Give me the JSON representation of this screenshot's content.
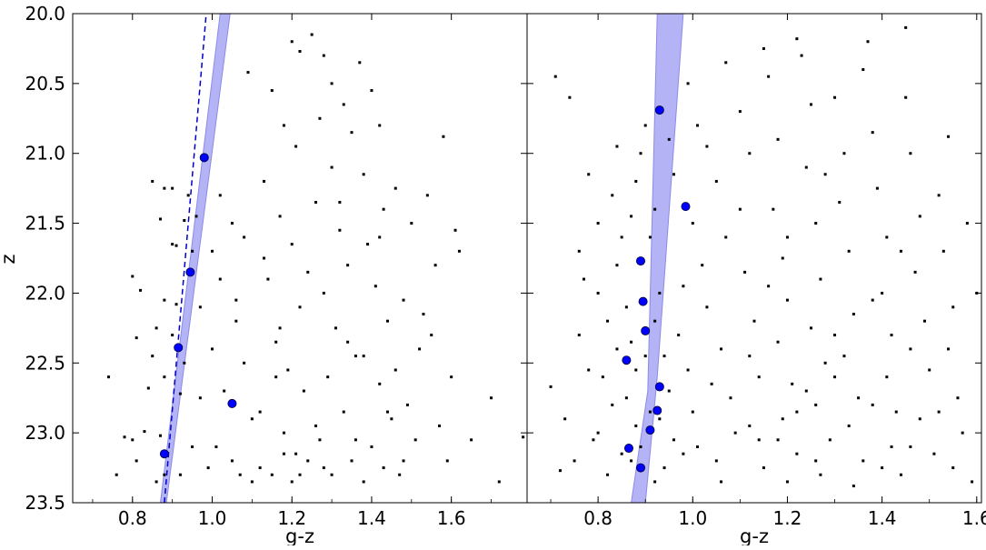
{
  "chart_data": [
    {
      "type": "scatter",
      "panel": "left",
      "xlabel": "g-z",
      "ylabel": "z",
      "xlim": [
        0.65,
        1.79
      ],
      "ylim": [
        23.5,
        20.0
      ],
      "y_inverted": true,
      "x_ticks": [
        "0.8",
        "1.0",
        "1.2",
        "1.4",
        "1.6"
      ],
      "y_ticks": [
        "20.0",
        "20.5",
        "21.0",
        "21.5",
        "22.0",
        "22.5",
        "23.0",
        "23.5"
      ],
      "grid": false,
      "band": {
        "color": "#b3b3f5",
        "left_edge": [
          [
            0.87,
            23.5
          ],
          [
            1.02,
            20.0
          ]
        ],
        "right_edge": [
          [
            0.885,
            23.5
          ],
          [
            1.045,
            20.0
          ]
        ]
      },
      "dashed_line": {
        "color": "#0000cc",
        "points": [
          [
            0.88,
            23.5
          ],
          [
            0.985,
            20.0
          ]
        ]
      },
      "highlighted_points": {
        "color": "#0000ff",
        "points": [
          [
            0.98,
            21.03
          ],
          [
            0.945,
            21.85
          ],
          [
            0.915,
            22.39
          ],
          [
            1.05,
            22.79
          ],
          [
            0.88,
            23.15
          ]
        ]
      },
      "scatter_points": [
        [
          0.85,
          21.2
        ],
        [
          0.88,
          21.25
        ],
        [
          0.9,
          21.25
        ],
        [
          0.94,
          21.3
        ],
        [
          0.87,
          21.47
        ],
        [
          0.93,
          21.48
        ],
        [
          0.96,
          21.45
        ],
        [
          0.9,
          21.65
        ],
        [
          0.91,
          21.66
        ],
        [
          0.95,
          21.7
        ],
        [
          0.8,
          21.88
        ],
        [
          0.82,
          21.98
        ],
        [
          0.88,
          22.05
        ],
        [
          0.91,
          22.08
        ],
        [
          0.97,
          22.1
        ],
        [
          0.86,
          22.25
        ],
        [
          0.9,
          22.3
        ],
        [
          0.81,
          22.32
        ],
        [
          0.85,
          22.45
        ],
        [
          0.93,
          22.5
        ],
        [
          0.88,
          22.6
        ],
        [
          0.74,
          22.6
        ],
        [
          0.84,
          22.68
        ],
        [
          0.92,
          22.72
        ],
        [
          0.97,
          22.75
        ],
        [
          0.83,
          22.99
        ],
        [
          0.87,
          23.02
        ],
        [
          0.78,
          23.03
        ],
        [
          0.8,
          23.05
        ],
        [
          0.95,
          23.1
        ],
        [
          0.81,
          23.2
        ],
        [
          0.76,
          23.3
        ],
        [
          0.86,
          23.35
        ],
        [
          0.92,
          23.3
        ],
        [
          0.99,
          23.25
        ],
        [
          0.88,
          23.3
        ],
        [
          1.02,
          21.3
        ],
        [
          1.05,
          21.5
        ],
        [
          1.0,
          21.7
        ],
        [
          1.08,
          21.6
        ],
        [
          1.02,
          21.9
        ],
        [
          1.06,
          22.2
        ],
        [
          1.0,
          22.4
        ],
        [
          1.08,
          22.5
        ],
        [
          1.03,
          22.7
        ],
        [
          1.1,
          22.9
        ],
        [
          1.01,
          23.1
        ],
        [
          1.05,
          23.2
        ],
        [
          1.07,
          23.3
        ],
        [
          1.12,
          23.25
        ],
        [
          1.09,
          20.42
        ],
        [
          1.15,
          20.55
        ],
        [
          1.18,
          20.8
        ],
        [
          1.21,
          20.95
        ],
        [
          1.13,
          21.2
        ],
        [
          1.17,
          21.45
        ],
        [
          1.2,
          21.65
        ],
        [
          1.14,
          21.9
        ],
        [
          1.22,
          22.1
        ],
        [
          1.16,
          22.35
        ],
        [
          1.19,
          22.55
        ],
        [
          1.23,
          22.7
        ],
        [
          1.12,
          22.85
        ],
        [
          1.18,
          23.0
        ],
        [
          1.21,
          23.15
        ],
        [
          1.15,
          23.3
        ],
        [
          1.2,
          23.35
        ],
        [
          1.24,
          23.2
        ],
        [
          1.17,
          22.25
        ],
        [
          1.13,
          21.75
        ],
        [
          1.2,
          20.2
        ],
        [
          1.22,
          20.27
        ],
        [
          1.25,
          20.15
        ],
        [
          1.28,
          20.3
        ],
        [
          1.3,
          20.5
        ],
        [
          1.27,
          20.75
        ],
        [
          1.33,
          20.65
        ],
        [
          1.35,
          20.85
        ],
        [
          1.3,
          21.1
        ],
        [
          1.26,
          21.35
        ],
        [
          1.32,
          21.55
        ],
        [
          1.34,
          21.8
        ],
        [
          1.28,
          22.0
        ],
        [
          1.31,
          22.25
        ],
        [
          1.36,
          22.45
        ],
        [
          1.29,
          22.6
        ],
        [
          1.33,
          22.85
        ],
        [
          1.27,
          23.05
        ],
        [
          1.35,
          23.2
        ],
        [
          1.3,
          23.3
        ],
        [
          1.37,
          20.35
        ],
        [
          1.4,
          20.55
        ],
        [
          1.42,
          20.8
        ],
        [
          1.38,
          21.15
        ],
        [
          1.43,
          21.4
        ],
        [
          1.39,
          21.65
        ],
        [
          1.41,
          21.95
        ],
        [
          1.44,
          22.2
        ],
        [
          1.38,
          22.45
        ],
        [
          1.42,
          22.65
        ],
        [
          1.45,
          22.9
        ],
        [
          1.4,
          23.1
        ],
        [
          1.43,
          23.25
        ],
        [
          1.47,
          23.3
        ],
        [
          1.46,
          21.25
        ],
        [
          1.48,
          22.05
        ],
        [
          1.5,
          21.5
        ],
        [
          1.52,
          22.4
        ],
        [
          1.49,
          22.8
        ],
        [
          1.51,
          23.05
        ],
        [
          1.54,
          21.3
        ],
        [
          1.56,
          21.8
        ],
        [
          1.58,
          20.88
        ],
        [
          1.55,
          22.3
        ],
        [
          1.6,
          22.6
        ],
        [
          1.57,
          22.95
        ],
        [
          1.59,
          23.2
        ],
        [
          1.62,
          21.7
        ],
        [
          1.65,
          23.05
        ],
        [
          1.7,
          22.75
        ],
        [
          1.78,
          23.03
        ],
        [
          1.72,
          23.35
        ],
        [
          1.61,
          21.55
        ],
        [
          1.53,
          22.15
        ],
        [
          1.46,
          22.55
        ],
        [
          1.36,
          23.05
        ],
        [
          1.26,
          22.95
        ],
        [
          1.16,
          22.6
        ],
        [
          1.06,
          22.05
        ],
        [
          1.24,
          21.85
        ],
        [
          1.32,
          21.35
        ],
        [
          1.42,
          21.6
        ],
        [
          1.34,
          22.35
        ],
        [
          1.44,
          22.85
        ],
        [
          1.22,
          23.3
        ],
        [
          1.38,
          23.35
        ],
        [
          1.28,
          23.25
        ],
        [
          1.18,
          23.15
        ],
        [
          1.1,
          23.35
        ],
        [
          1.48,
          23.2
        ]
      ]
    },
    {
      "type": "scatter",
      "panel": "right",
      "xlabel": "g-z",
      "ylabel": "",
      "xlim": [
        0.65,
        1.61
      ],
      "ylim": [
        23.5,
        20.0
      ],
      "y_inverted": true,
      "x_ticks": [
        "0.8",
        "1.0",
        "1.2",
        "1.4",
        "1.6"
      ],
      "y_ticks": [],
      "grid": false,
      "band": {
        "color": "#b3b3f5",
        "left_edge": [
          [
            0.87,
            23.5
          ],
          [
            0.905,
            22.7
          ],
          [
            0.925,
            20.0
          ]
        ],
        "right_edge": [
          [
            0.9,
            23.5
          ],
          [
            0.925,
            22.6
          ],
          [
            0.98,
            20.0
          ]
        ]
      },
      "highlighted_points": {
        "color": "#0000ff",
        "points": [
          [
            0.93,
            20.69
          ],
          [
            0.985,
            21.38
          ],
          [
            0.89,
            21.77
          ],
          [
            0.895,
            22.06
          ],
          [
            0.9,
            22.27
          ],
          [
            0.86,
            22.48
          ],
          [
            0.93,
            22.67
          ],
          [
            0.925,
            22.84
          ],
          [
            0.91,
            22.98
          ],
          [
            0.865,
            23.11
          ],
          [
            0.89,
            23.25
          ]
        ]
      },
      "scatter_points": [
        [
          0.71,
          20.45
        ],
        [
          0.74,
          20.6
        ],
        [
          0.7,
          22.67
        ],
        [
          0.73,
          22.9
        ],
        [
          0.76,
          22.3
        ],
        [
          0.78,
          22.55
        ],
        [
          0.75,
          23.2
        ],
        [
          0.79,
          23.05
        ],
        [
          0.72,
          23.27
        ],
        [
          0.77,
          21.9
        ],
        [
          0.8,
          22.0
        ],
        [
          0.82,
          22.2
        ],
        [
          0.84,
          22.4
        ],
        [
          0.81,
          22.6
        ],
        [
          0.83,
          22.8
        ],
        [
          0.8,
          23.0
        ],
        [
          0.85,
          23.15
        ],
        [
          0.82,
          23.3
        ],
        [
          0.84,
          21.8
        ],
        [
          0.86,
          22.1
        ],
        [
          0.87,
          22.35
        ],
        [
          0.88,
          22.55
        ],
        [
          0.86,
          22.75
        ],
        [
          0.88,
          22.95
        ],
        [
          0.87,
          23.2
        ],
        [
          0.85,
          21.6
        ],
        [
          0.83,
          21.3
        ],
        [
          0.88,
          21.2
        ],
        [
          0.87,
          21.45
        ],
        [
          0.89,
          21.0
        ],
        [
          0.91,
          21.6
        ],
        [
          0.93,
          22.0
        ],
        [
          0.92,
          22.2
        ],
        [
          0.94,
          22.45
        ],
        [
          0.95,
          22.7
        ],
        [
          0.93,
          22.9
        ],
        [
          0.96,
          23.05
        ],
        [
          0.94,
          23.25
        ],
        [
          0.97,
          22.3
        ],
        [
          0.98,
          21.95
        ],
        [
          0.99,
          22.55
        ],
        [
          1.0,
          22.85
        ],
        [
          1.01,
          23.1
        ],
        [
          1.0,
          21.5
        ],
        [
          1.02,
          21.8
        ],
        [
          0.96,
          21.15
        ],
        [
          0.95,
          20.9
        ],
        [
          0.99,
          20.5
        ],
        [
          1.01,
          20.8
        ],
        [
          1.03,
          22.1
        ],
        [
          1.05,
          21.2
        ],
        [
          1.07,
          21.6
        ],
        [
          1.06,
          22.4
        ],
        [
          1.08,
          22.75
        ],
        [
          1.05,
          23.2
        ],
        [
          1.09,
          23.0
        ],
        [
          1.1,
          20.7
        ],
        [
          1.12,
          21.0
        ],
        [
          1.11,
          21.85
        ],
        [
          1.13,
          22.2
        ],
        [
          1.14,
          22.6
        ],
        [
          1.12,
          22.95
        ],
        [
          1.15,
          23.25
        ],
        [
          1.16,
          20.45
        ],
        [
          1.18,
          20.9
        ],
        [
          1.17,
          21.4
        ],
        [
          1.19,
          21.75
        ],
        [
          1.2,
          22.05
        ],
        [
          1.18,
          22.35
        ],
        [
          1.21,
          22.65
        ],
        [
          1.19,
          22.9
        ],
        [
          1.22,
          23.15
        ],
        [
          1.2,
          23.35
        ],
        [
          1.23,
          20.3
        ],
        [
          1.25,
          20.65
        ],
        [
          1.24,
          21.1
        ],
        [
          1.26,
          21.5
        ],
        [
          1.27,
          21.9
        ],
        [
          1.25,
          22.25
        ],
        [
          1.28,
          22.5
        ],
        [
          1.26,
          22.8
        ],
        [
          1.29,
          23.05
        ],
        [
          1.27,
          23.3
        ],
        [
          1.3,
          20.6
        ],
        [
          1.32,
          21.0
        ],
        [
          1.31,
          21.35
        ],
        [
          1.33,
          21.7
        ],
        [
          1.34,
          22.15
        ],
        [
          1.32,
          22.45
        ],
        [
          1.35,
          22.75
        ],
        [
          1.33,
          22.95
        ],
        [
          1.36,
          23.2
        ],
        [
          1.34,
          23.38
        ],
        [
          1.37,
          20.2
        ],
        [
          1.38,
          20.85
        ],
        [
          1.39,
          21.25
        ],
        [
          1.41,
          21.6
        ],
        [
          1.4,
          22.0
        ],
        [
          1.42,
          22.3
        ],
        [
          1.41,
          22.6
        ],
        [
          1.43,
          22.85
        ],
        [
          1.42,
          23.1
        ],
        [
          1.44,
          23.3
        ],
        [
          1.45,
          20.6
        ],
        [
          1.46,
          21.0
        ],
        [
          1.48,
          21.45
        ],
        [
          1.47,
          21.85
        ],
        [
          1.49,
          22.2
        ],
        [
          1.5,
          22.55
        ],
        [
          1.48,
          22.9
        ],
        [
          1.51,
          23.15
        ],
        [
          1.52,
          21.3
        ],
        [
          1.53,
          21.7
        ],
        [
          1.55,
          22.1
        ],
        [
          1.54,
          22.4
        ],
        [
          1.56,
          22.75
        ],
        [
          1.57,
          23.0
        ],
        [
          1.55,
          23.25
        ],
        [
          1.58,
          21.5
        ],
        [
          1.6,
          22.0
        ],
        [
          1.59,
          23.35
        ],
        [
          1.54,
          20.88
        ],
        [
          1.45,
          20.1
        ],
        [
          1.36,
          20.4
        ],
        [
          1.22,
          20.18
        ],
        [
          1.15,
          20.25
        ],
        [
          1.07,
          20.35
        ],
        [
          1.03,
          20.95
        ],
        [
          1.1,
          21.4
        ],
        [
          1.16,
          21.95
        ],
        [
          1.24,
          22.7
        ],
        [
          1.3,
          22.3
        ],
        [
          1.38,
          22.05
        ],
        [
          1.46,
          22.4
        ],
        [
          1.52,
          22.85
        ],
        [
          1.44,
          21.7
        ],
        [
          1.28,
          21.15
        ],
        [
          1.2,
          21.6
        ],
        [
          1.12,
          22.45
        ],
        [
          1.04,
          22.65
        ],
        [
          0.98,
          23.15
        ],
        [
          1.06,
          23.35
        ],
        [
          1.14,
          23.05
        ],
        [
          1.22,
          22.85
        ],
        [
          1.3,
          22.6
        ],
        [
          1.38,
          22.8
        ],
        [
          1.46,
          23.1
        ],
        [
          1.4,
          23.25
        ],
        [
          1.26,
          23.2
        ],
        [
          1.18,
          23.05
        ],
        [
          0.9,
          20.8
        ],
        [
          0.92,
          21.4
        ],
        [
          0.84,
          20.95
        ],
        [
          0.78,
          21.15
        ],
        [
          0.8,
          21.5
        ],
        [
          0.76,
          21.7
        ],
        [
          0.9,
          22.45
        ],
        [
          0.91,
          22.85
        ],
        [
          0.89,
          23.1
        ],
        [
          0.92,
          23.35
        ]
      ]
    }
  ]
}
